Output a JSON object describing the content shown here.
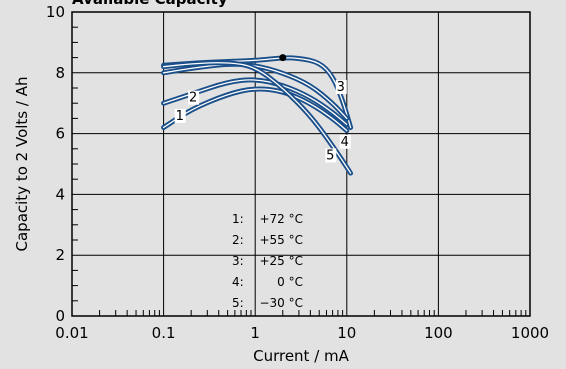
{
  "chart_data": {
    "type": "line",
    "title": "Available Capacity",
    "xlabel": "Current / mA",
    "ylabel": "Capacity to 2 Volts / Ah",
    "x_scale": "log",
    "xlim": [
      0.01,
      1000
    ],
    "ylim": [
      0,
      10
    ],
    "x_ticks": [
      "0.01",
      "0.1",
      "1",
      "10",
      "100",
      "1000"
    ],
    "y_ticks": [
      "0",
      "2",
      "4",
      "6",
      "8",
      "10"
    ],
    "grid": true,
    "line_color": "#1a4f8a",
    "legend": [
      {
        "num": "1:",
        "temp": "+72 °C"
      },
      {
        "num": "2:",
        "temp": "+55 °C"
      },
      {
        "num": "3:",
        "temp": "+25 °C"
      },
      {
        "num": "4:",
        "temp": "0 °C"
      },
      {
        "num": "5:",
        "temp": "−30 °C"
      }
    ],
    "series": [
      {
        "name": "1",
        "x": [
          0.1,
          0.2,
          0.5,
          1,
          2,
          4,
          7,
          10
        ],
        "y": [
          6.2,
          6.8,
          7.3,
          7.5,
          7.4,
          7.0,
          6.5,
          6.1
        ]
      },
      {
        "name": "2",
        "x": [
          0.1,
          0.2,
          0.5,
          1,
          2,
          4,
          7,
          10
        ],
        "y": [
          7.0,
          7.3,
          7.7,
          7.8,
          7.6,
          7.2,
          6.7,
          6.3
        ]
      },
      {
        "name": "3",
        "x": [
          0.1,
          0.3,
          1,
          2,
          3,
          5,
          7,
          9,
          11
        ],
        "y": [
          8.25,
          8.35,
          8.4,
          8.5,
          8.48,
          8.35,
          7.9,
          7.1,
          6.2
        ]
      },
      {
        "name": "4",
        "x": [
          0.1,
          0.2,
          0.5,
          1,
          2,
          4,
          7,
          10
        ],
        "y": [
          8.0,
          8.15,
          8.3,
          8.25,
          8.0,
          7.6,
          7.0,
          6.5
        ]
      },
      {
        "name": "5",
        "x": [
          0.1,
          0.2,
          0.5,
          1,
          2,
          4,
          7,
          11
        ],
        "y": [
          8.2,
          8.3,
          8.35,
          8.2,
          7.5,
          6.6,
          5.6,
          4.7
        ]
      }
    ],
    "marker": {
      "x": 2.0,
      "y": 8.5
    }
  }
}
